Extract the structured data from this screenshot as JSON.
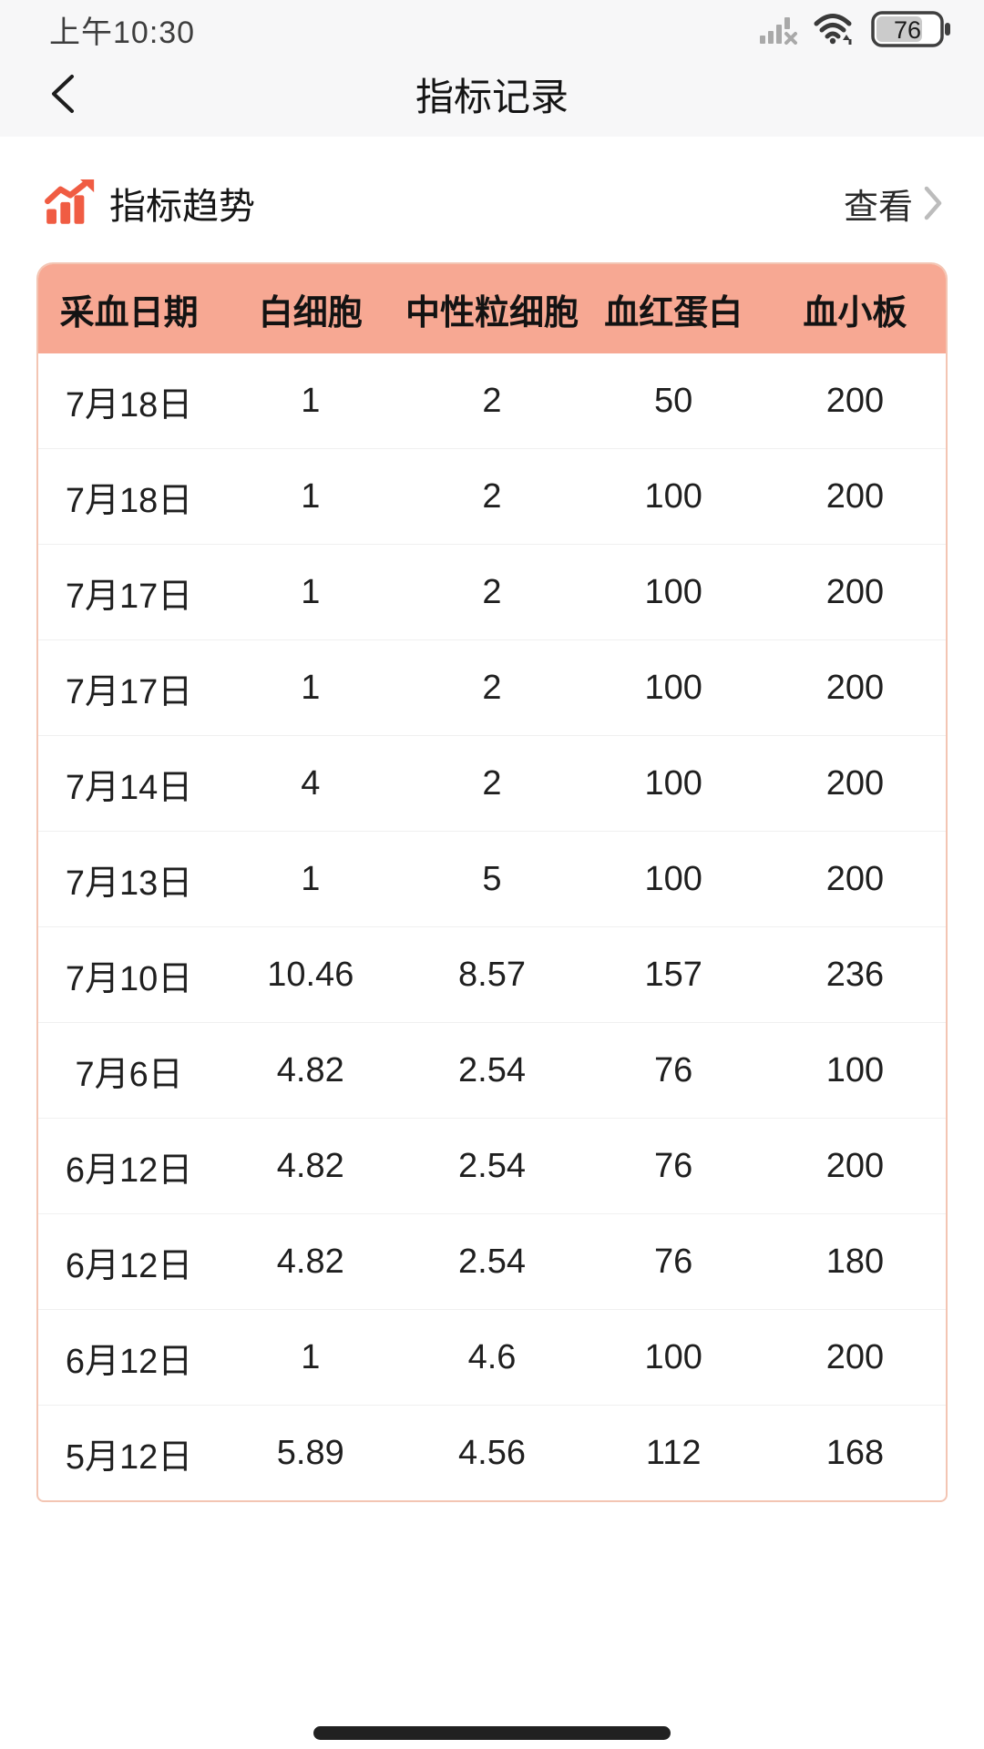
{
  "status_bar": {
    "time": "上午10:30",
    "battery_percent": "76",
    "icons": [
      "signal-no-service-icon",
      "wifi-icon",
      "battery-icon"
    ]
  },
  "nav": {
    "title": "指标记录"
  },
  "trend_section": {
    "icon": "trend-chart-icon",
    "label": "指标趋势",
    "view_label": "查看"
  },
  "table": {
    "headers": [
      "采血日期",
      "白细胞",
      "中性粒细胞",
      "血红蛋白",
      "血小板"
    ],
    "rows": [
      [
        "7月18日",
        "1",
        "2",
        "50",
        "200"
      ],
      [
        "7月18日",
        "1",
        "2",
        "100",
        "200"
      ],
      [
        "7月17日",
        "1",
        "2",
        "100",
        "200"
      ],
      [
        "7月17日",
        "1",
        "2",
        "100",
        "200"
      ],
      [
        "7月14日",
        "4",
        "2",
        "100",
        "200"
      ],
      [
        "7月13日",
        "1",
        "5",
        "100",
        "200"
      ],
      [
        "7月10日",
        "10.46",
        "8.57",
        "157",
        "236"
      ],
      [
        "7月6日",
        "4.82",
        "2.54",
        "76",
        "100"
      ],
      [
        "6月12日",
        "4.82",
        "2.54",
        "76",
        "200"
      ],
      [
        "6月12日",
        "4.82",
        "2.54",
        "76",
        "180"
      ],
      [
        "6月12日",
        "1",
        "4.6",
        "100",
        "200"
      ],
      [
        "5月12日",
        "5.89",
        "4.56",
        "112",
        "168"
      ]
    ]
  },
  "colors": {
    "accent": "#f05c43",
    "table_header_bg": "#f7a893",
    "table_border": "#f3c5b3",
    "topbar_bg": "#f7f7f8",
    "chevron_gray": "#bcbcbc"
  }
}
